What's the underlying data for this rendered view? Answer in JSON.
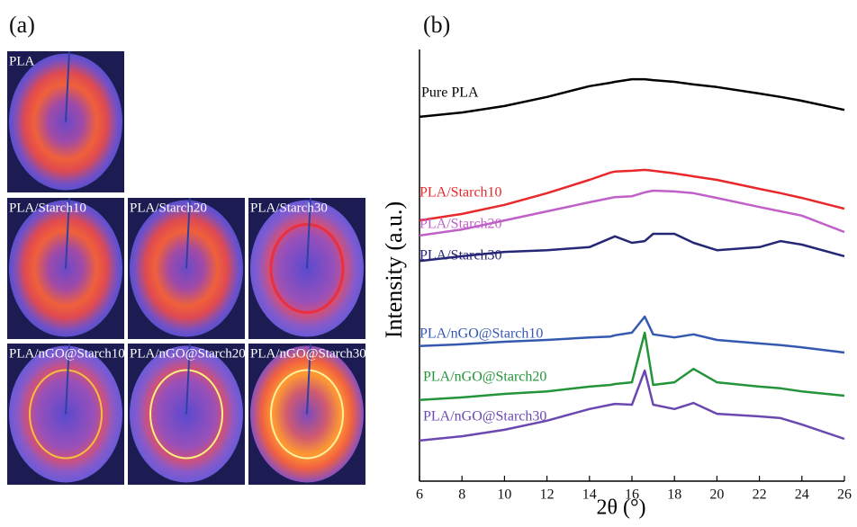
{
  "panel_a": {
    "label": "(a)",
    "images": [
      {
        "label": "PLA"
      },
      {
        "label": "PLA/Starch10"
      },
      {
        "label": "PLA/Starch20"
      },
      {
        "label": "PLA/Starch30"
      },
      {
        "label": "PLA/nGO@Starch10"
      },
      {
        "label": "PLA/nGO@Starch20"
      },
      {
        "label": "PLA/nGO@Starch30"
      }
    ]
  },
  "chart_data": {
    "type": "line",
    "panel_label": "(b)",
    "x_label": "2θ (°)",
    "y_label": "Intensity (a.u.)",
    "x": [
      6,
      8,
      10,
      12,
      14,
      15,
      15.2,
      16,
      16.6,
      17,
      18,
      18.9,
      20,
      22,
      23,
      24,
      26
    ],
    "xlim": [
      6,
      26
    ],
    "xticks": [
      6,
      8,
      10,
      12,
      14,
      16,
      18,
      20,
      22,
      24,
      26
    ],
    "ylim": [
      0,
      100
    ],
    "series": [
      {
        "name": "Pure PLA",
        "color": "#000000",
        "values": [
          84.4,
          85.4,
          86.9,
          89.0,
          91.5,
          92.3,
          92.5,
          93.1,
          93.1,
          92.9,
          92.5,
          91.9,
          91.3,
          89.8,
          89.0,
          88.1,
          86.0
        ]
      },
      {
        "name": "PLA/Starch10",
        "color": "#e8282a",
        "values": [
          60.4,
          61.9,
          64.0,
          66.7,
          69.8,
          71.5,
          71.7,
          71.9,
          72.1,
          71.9,
          71.3,
          70.6,
          69.8,
          67.7,
          66.7,
          65.6,
          63.1
        ]
      },
      {
        "name": "PLA/Starch20",
        "color": "#c060c8",
        "values": [
          56.9,
          58.3,
          60.4,
          62.5,
          64.6,
          65.6,
          65.8,
          66.0,
          66.9,
          67.3,
          67.1,
          66.7,
          65.6,
          63.5,
          62.5,
          61.5,
          57.7
        ]
      },
      {
        "name": "PLA/Starch30",
        "color": "#262676",
        "values": [
          51.0,
          52.1,
          53.1,
          53.5,
          54.2,
          56.3,
          56.7,
          55.2,
          55.6,
          57.3,
          57.3,
          55.2,
          53.5,
          54.2,
          55.6,
          54.8,
          52.1
        ]
      },
      {
        "name": "PLA/nGO@Starch10",
        "color": "#3558b0",
        "values": [
          31.3,
          31.7,
          32.3,
          32.7,
          33.3,
          33.5,
          33.8,
          34.4,
          38.1,
          34.0,
          33.3,
          34.0,
          32.7,
          31.9,
          31.5,
          31.0,
          29.8
        ]
      },
      {
        "name": "PLA/nGO@Starch20",
        "color": "#23943a",
        "values": [
          18.8,
          19.4,
          20.2,
          20.8,
          21.9,
          22.3,
          22.5,
          22.9,
          34.4,
          22.3,
          22.9,
          26.0,
          22.9,
          21.9,
          21.5,
          20.8,
          19.8
        ]
      },
      {
        "name": "PLA/nGO@Starch30",
        "color": "#6a48b0",
        "values": [
          9.4,
          10.4,
          11.9,
          14.0,
          16.7,
          17.7,
          17.9,
          17.7,
          25.6,
          17.7,
          16.7,
          18.1,
          15.6,
          15.0,
          14.6,
          13.1,
          9.8
        ]
      }
    ]
  }
}
